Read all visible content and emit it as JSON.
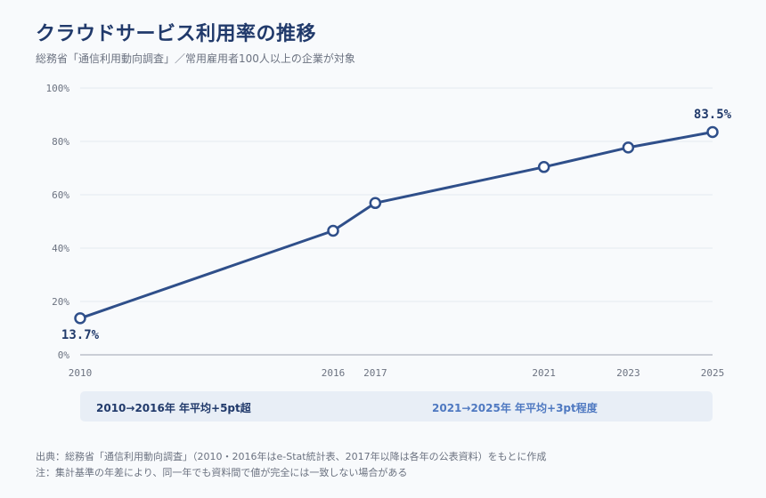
{
  "title": "クラウドサービス利用率の推移",
  "subtitle": "総務省「通信利用動向調査」／常用雇用者100人以上の企業が対象",
  "chart_data": {
    "type": "line",
    "x": [
      2010,
      2016,
      2017,
      2021,
      2023,
      2025
    ],
    "x_tick_labels": [
      "2010",
      "2016",
      "2017",
      "2021",
      "2023",
      "2025"
    ],
    "series": [
      {
        "values": [
          13.7,
          46.5,
          56.9,
          70.4,
          77.7,
          83.5
        ],
        "color": "#2f4f8a"
      }
    ],
    "y_ticks": [
      "0%",
      "20%",
      "40%",
      "60%",
      "80%",
      "100%"
    ],
    "ylim": [
      0,
      100
    ],
    "xlim": [
      2010,
      2025
    ],
    "grid": true,
    "start_label": "13.7%",
    "end_label": "83.5%"
  },
  "annotations": {
    "left": "2010→2016年 年平均+5pt超",
    "right": "2021→2025年 年平均+3pt程度"
  },
  "footer": {
    "source": "出典：総務省「通信利用動向調査」（2010・2016年はe-Stat統計表、2017年以降は各年の公表資料）をもとに作成",
    "note": "注：集計基準の年差により、同一年でも資料間で値が完全には一致しない場合がある"
  },
  "colors": {
    "title": "#213a6b",
    "line": "#2f4f8a",
    "band": "#e8eef6",
    "band_right_text": "#4f79c1"
  }
}
